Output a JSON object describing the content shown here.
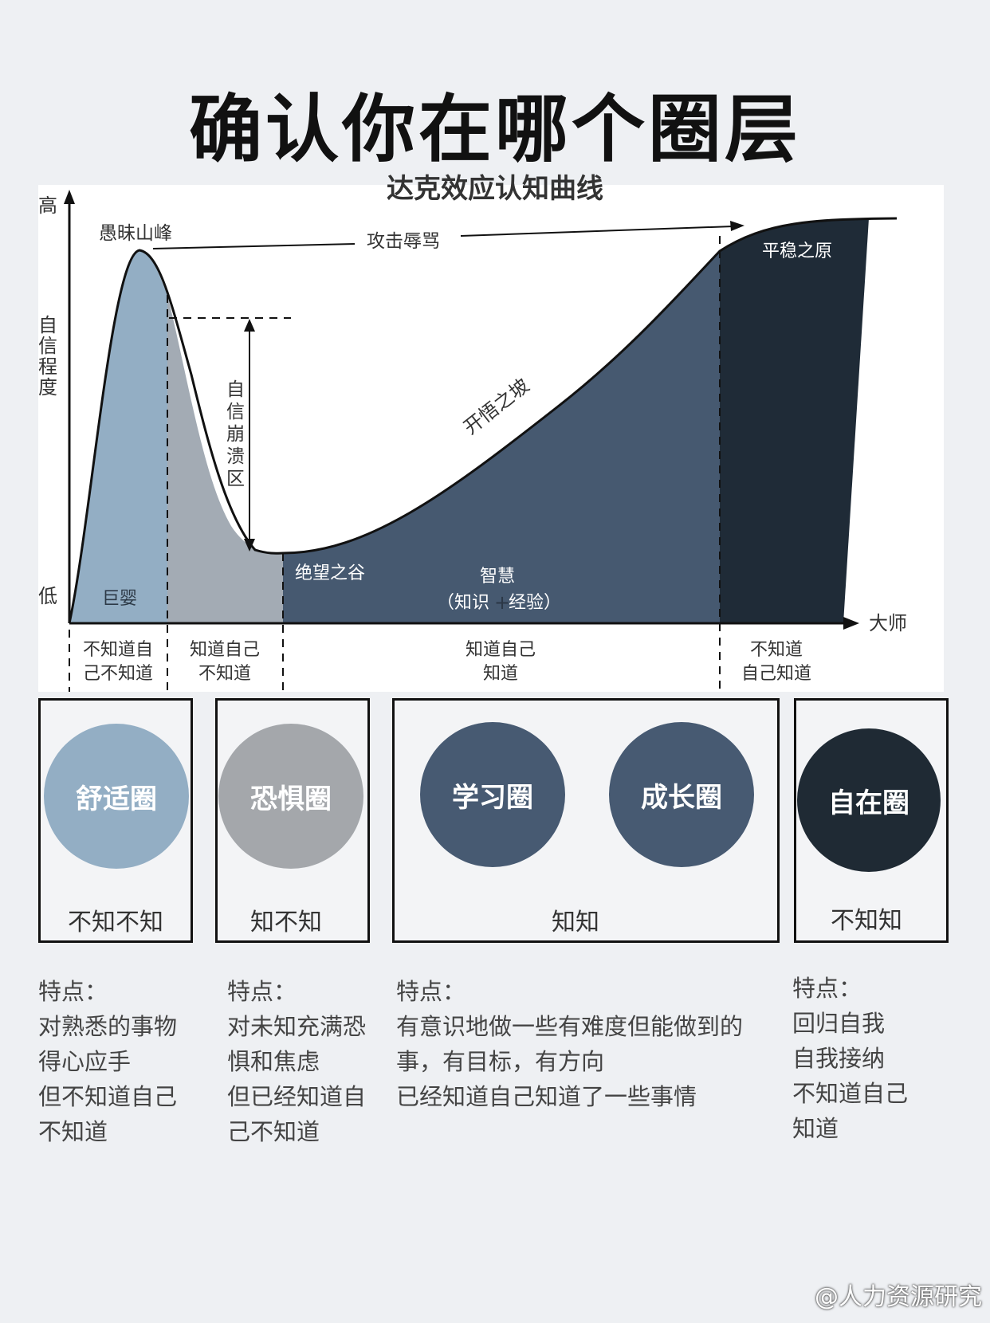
{
  "title": "确认你在哪个圈层",
  "subtitle": "达克效应认知曲线",
  "chart": {
    "y_high": "高",
    "y_low": "低",
    "y_label_chars": [
      "自",
      "信",
      "程",
      "度"
    ],
    "x_end": "大师",
    "peak": "愚昧山峰",
    "attack": "攻击辱骂",
    "collapse_chars": [
      "自",
      "信",
      "崩",
      "溃",
      "区"
    ],
    "slope": "开悟之坡",
    "plateau": "平稳之原",
    "valley": "绝望之谷",
    "baby": "巨婴",
    "wisdom": "智慧",
    "wisdom_formula_left": "（知识",
    "wisdom_formula_plus": "+",
    "wisdom_formula_right": "经验）",
    "stages": [
      {
        "line1": "不知道自",
        "line2": "己不知道"
      },
      {
        "line1": "知道自己",
        "line2": "不知道"
      },
      {
        "line1": "知道自己",
        "line2": "知道"
      },
      {
        "line1": "不知道",
        "line2": "自己知道"
      }
    ],
    "colors": {
      "comfort": "#93aec4",
      "fear": "#a3abb4",
      "learn": "#465970",
      "master": "#1f2b37"
    }
  },
  "zones": [
    {
      "circle": "舒适圈",
      "caption": "不知不知",
      "color": "#93aec4"
    },
    {
      "circle": "恐惧圈",
      "caption": "知不知",
      "color": "#a4a7ab"
    },
    {
      "circle": "学习圈",
      "circle2": "成长圈",
      "caption": "知知",
      "color": "#475a72"
    },
    {
      "circle": "自在圈",
      "caption": "不知知",
      "color": "#1f2a34"
    }
  ],
  "descriptions": [
    {
      "head": "特点：",
      "lines": [
        "对熟悉的事物",
        "得心应手",
        "但不知道自己",
        "不知道"
      ]
    },
    {
      "head": "特点：",
      "lines": [
        "对未知充满恐",
        "惧和焦虑",
        "但已经知道自",
        "己不知道"
      ]
    },
    {
      "head": "特点：",
      "lines": [
        "有意识地做一些有难度但能做到的",
        "事，有目标，有方向",
        "已经知道自己知道了一些事情"
      ]
    },
    {
      "head": "特点：",
      "lines": [
        "回归自我",
        "自我接纳",
        "不知道自己",
        "知道"
      ]
    }
  ],
  "watermark": "@人力资源研究"
}
